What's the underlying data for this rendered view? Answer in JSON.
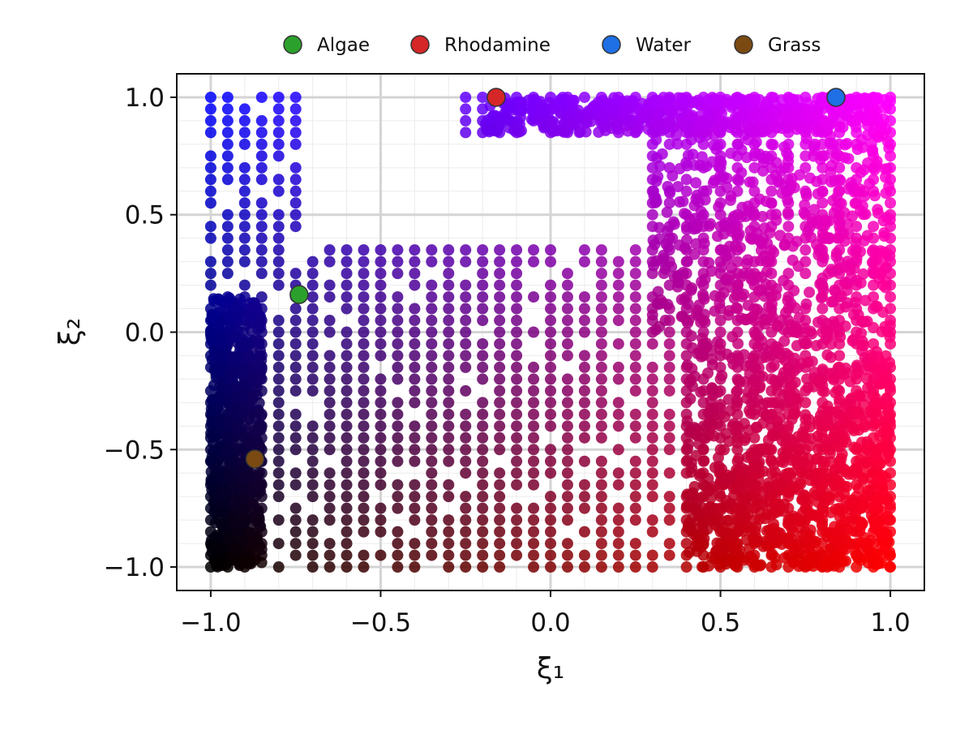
{
  "chart_data": {
    "type": "scatter",
    "title": "",
    "xlabel": "ξ₁",
    "ylabel": "ξ₂",
    "xlim": [
      -1.1,
      1.1
    ],
    "ylim": [
      -1.1,
      1.1
    ],
    "xticks": [
      -1.0,
      -0.5,
      0.0,
      0.5,
      1.0
    ],
    "yticks": [
      -1.0,
      -0.5,
      0.0,
      0.5,
      1.0
    ],
    "xtick_labels": [
      "−1.0",
      "−0.5",
      "0.0",
      "0.5",
      "1.0"
    ],
    "ytick_labels": [
      "−1.0",
      "−0.5",
      "0.0",
      "0.5",
      "1.0"
    ],
    "grid": true,
    "legend_position": "top (outside plot)",
    "background_points": {
      "description": "dense cloud of points on [-1,1]×[-1,1], colored red by ξ₁ and blue by ξ₂",
      "color_encoding": {
        "red": "(ξ₁+1)/2",
        "green": 0,
        "blue": "(ξ₂+1)/2"
      },
      "regions": [
        {
          "x": [
            -1.0,
            -0.72
          ],
          "y": [
            -1.0,
            1.0
          ]
        },
        {
          "x": [
            -0.72,
            0.3
          ],
          "y": [
            -1.0,
            0.35
          ]
        },
        {
          "x": [
            -0.25,
            0.4
          ],
          "y": [
            0.85,
            1.0
          ]
        },
        {
          "x": [
            0.3,
            1.0
          ],
          "y": [
            -1.0,
            1.0
          ]
        }
      ]
    },
    "series": [
      {
        "name": "Algae",
        "color": "#2ca02c",
        "x": [
          -0.74
        ],
        "y": [
          0.16
        ]
      },
      {
        "name": "Rhodamine",
        "color": "#d62728",
        "x": [
          -0.16
        ],
        "y": [
          1.0
        ]
      },
      {
        "name": "Water",
        "color": "#1f6fe5",
        "x": [
          0.84
        ],
        "y": [
          1.0
        ]
      },
      {
        "name": "Grass",
        "color": "#7a4a12",
        "x": [
          -0.87
        ],
        "y": [
          -0.54
        ]
      }
    ]
  }
}
